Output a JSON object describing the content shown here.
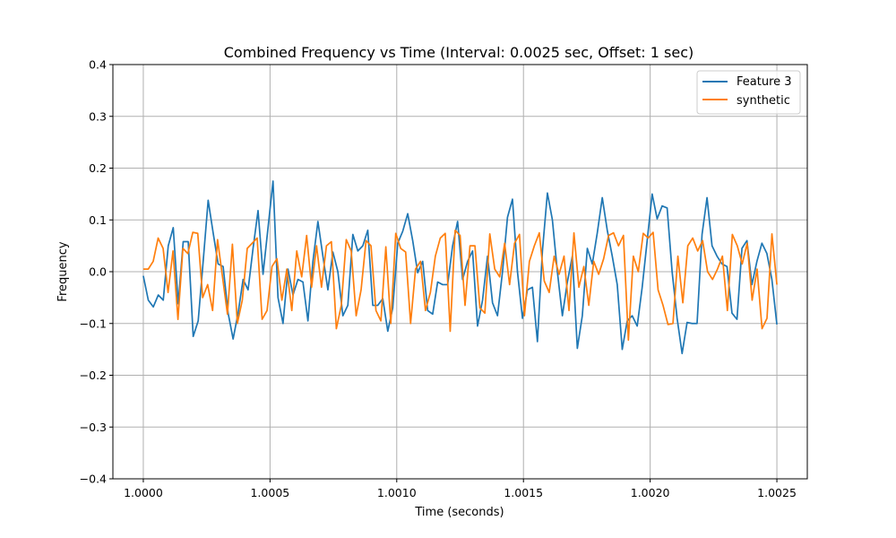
{
  "chart_data": {
    "type": "line",
    "title": "Combined Frequency vs Time (Interval: 0.0025 sec, Offset: 1 sec)",
    "xlabel": "Time (seconds)",
    "ylabel": "Frequency",
    "xlim": [
      0.99988,
      1.00262
    ],
    "ylim": [
      -0.4,
      0.4
    ],
    "xticks": [
      1.0,
      1.0005,
      1.001,
      1.0015,
      1.002,
      1.0025
    ],
    "xtick_labels": [
      "1.0000",
      "1.0005",
      "1.0010",
      "1.0015",
      "1.0020",
      "1.0025"
    ],
    "yticks": [
      -0.4,
      -0.3,
      -0.2,
      -0.1,
      0.0,
      0.1,
      0.2,
      0.3,
      0.4
    ],
    "ytick_labels": [
      "−0.4",
      "−0.3",
      "−0.2",
      "−0.1",
      "0.0",
      "0.1",
      "0.2",
      "0.3",
      "0.4"
    ],
    "grid": true,
    "legend_position": "top-right",
    "x_start": 1.0,
    "x_end": 1.0025,
    "series": [
      {
        "name": "Feature 3",
        "color": "#1f77b4",
        "values": [
          -0.008,
          -0.055,
          -0.068,
          -0.045,
          -0.055,
          0.05,
          0.085,
          -0.062,
          0.058,
          0.058,
          -0.125,
          -0.095,
          0.02,
          0.138,
          0.075,
          0.015,
          0.01,
          -0.08,
          -0.13,
          -0.08,
          -0.015,
          -0.035,
          0.045,
          0.118,
          -0.005,
          0.085,
          0.175,
          -0.05,
          -0.1,
          0.005,
          -0.045,
          -0.015,
          -0.02,
          -0.095,
          0.02,
          0.097,
          0.03,
          -0.035,
          0.038,
          0.0,
          -0.085,
          -0.065,
          0.072,
          0.04,
          0.05,
          0.08,
          -0.065,
          -0.065,
          -0.052,
          -0.115,
          -0.07,
          0.055,
          0.078,
          0.112,
          0.06,
          -0.002,
          0.02,
          -0.075,
          -0.082,
          -0.02,
          -0.025,
          -0.025,
          0.05,
          0.097,
          -0.015,
          0.02,
          0.04,
          -0.105,
          -0.055,
          0.03,
          -0.06,
          -0.085,
          0.0,
          0.105,
          0.14,
          0.0,
          -0.09,
          -0.035,
          -0.03,
          -0.135,
          0.04,
          0.152,
          0.1,
          0.0,
          -0.085,
          -0.02,
          0.03,
          -0.148,
          -0.085,
          0.045,
          0.015,
          0.075,
          0.143,
          0.08,
          0.03,
          -0.025,
          -0.15,
          -0.095,
          -0.085,
          -0.105,
          -0.03,
          0.06,
          0.15,
          0.102,
          0.127,
          0.123,
          0.0,
          -0.09,
          -0.158,
          -0.098,
          -0.1,
          -0.1,
          0.072,
          0.143,
          0.05,
          0.03,
          0.015,
          0.01,
          -0.08,
          -0.092,
          0.045,
          0.06,
          -0.025,
          0.02,
          0.055,
          0.035,
          -0.015,
          -0.102
        ]
      },
      {
        "name": "synthetic",
        "color": "#ff7f0e",
        "values": [
          0.005,
          0.005,
          0.02,
          0.065,
          0.045,
          -0.04,
          0.04,
          -0.092,
          0.045,
          0.035,
          0.076,
          0.074,
          -0.05,
          -0.025,
          -0.075,
          0.062,
          -0.01,
          -0.082,
          0.053,
          -0.1,
          -0.055,
          0.045,
          0.055,
          0.065,
          -0.092,
          -0.075,
          0.01,
          0.025,
          -0.055,
          0.005,
          -0.075,
          0.04,
          -0.01,
          0.07,
          -0.03,
          0.05,
          -0.03,
          0.05,
          0.058,
          -0.11,
          -0.065,
          0.062,
          0.04,
          -0.085,
          -0.035,
          0.06,
          0.05,
          -0.075,
          -0.095,
          0.048,
          -0.1,
          0.074,
          0.045,
          0.038,
          -0.1,
          0.005,
          0.02,
          -0.075,
          -0.04,
          0.03,
          0.065,
          0.074,
          -0.115,
          0.08,
          0.07,
          -0.065,
          0.05,
          0.05,
          -0.07,
          -0.08,
          0.073,
          0.005,
          -0.01,
          0.055,
          -0.025,
          0.055,
          0.072,
          -0.085,
          0.02,
          0.05,
          0.075,
          -0.018,
          -0.04,
          0.03,
          -0.005,
          0.03,
          -0.075,
          0.075,
          -0.03,
          0.01,
          -0.065,
          0.02,
          -0.005,
          0.025,
          0.07,
          0.075,
          0.05,
          0.07,
          -0.132,
          0.03,
          0.0,
          0.074,
          0.065,
          0.076,
          -0.035,
          -0.065,
          -0.102,
          -0.1,
          0.03,
          -0.06,
          0.05,
          0.065,
          0.04,
          0.06,
          0.0,
          -0.015,
          0.005,
          0.03,
          -0.075,
          0.072,
          0.05,
          0.015,
          0.055,
          -0.055,
          0.005,
          -0.11,
          -0.09,
          0.073,
          -0.025
        ]
      }
    ]
  }
}
